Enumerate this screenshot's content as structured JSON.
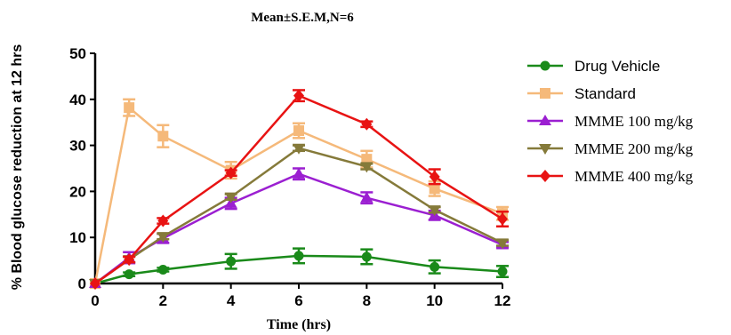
{
  "chart_data": {
    "type": "line",
    "title": "Mean±S.E.M,N=6",
    "xlabel": "Time (hrs)",
    "ylabel": "% Blood glucose reduction at 12 hrs",
    "xlim": [
      0,
      12
    ],
    "ylim": [
      0,
      50
    ],
    "xticks": [
      "0",
      "2",
      "4",
      "6",
      "8",
      "10",
      "12"
    ],
    "yticks": [
      "0",
      "10",
      "20",
      "30",
      "40",
      "50"
    ],
    "grid": false,
    "legend": "right",
    "series": [
      {
        "name": "Drug Vehicle",
        "color": "#1a8a1a",
        "marker": "circle",
        "x": [
          0,
          1,
          2,
          4,
          6,
          8,
          10,
          12
        ],
        "y": [
          0,
          2,
          3,
          4.8,
          6,
          5.8,
          3.6,
          2.6
        ],
        "err": [
          0,
          0.4,
          0.4,
          1.6,
          1.6,
          1.6,
          1.4,
          1.2
        ]
      },
      {
        "name": "Standard",
        "color": "#f5b97a",
        "marker": "square",
        "x": [
          0,
          1,
          2,
          4,
          6,
          8,
          10,
          12
        ],
        "y": [
          0,
          38.2,
          32,
          24.6,
          33.2,
          27,
          20.6,
          15.2
        ],
        "err": [
          0,
          1.8,
          2.4,
          1.8,
          1.6,
          1.8,
          1.6,
          1.4
        ]
      },
      {
        "name": "MMME 100 mg/kg",
        "color": "#9b1fd1",
        "marker": "triangle-up",
        "x": [
          0,
          1,
          2,
          4,
          6,
          8,
          10,
          12
        ],
        "y": [
          0,
          5.6,
          9.8,
          17.4,
          23.8,
          18.6,
          14.8,
          8.4
        ],
        "err": [
          0,
          1.2,
          1,
          1.2,
          1.2,
          1.2,
          1,
          0.6
        ]
      },
      {
        "name": "MMME 200 mg/kg",
        "color": "#857a3a",
        "marker": "triangle-down",
        "x": [
          0,
          1,
          2,
          4,
          6,
          8,
          10,
          12
        ],
        "y": [
          0,
          5.2,
          10.2,
          18.8,
          29.4,
          25.4,
          16,
          8.8
        ],
        "err": [
          0,
          0.6,
          0.6,
          0.6,
          0.6,
          0.6,
          0.6,
          0.6
        ]
      },
      {
        "name": "MMME 400 mg/kg",
        "color": "#e81313",
        "marker": "diamond",
        "x": [
          0,
          1,
          2,
          4,
          6,
          8,
          10,
          12
        ],
        "y": [
          0,
          5.2,
          13.6,
          24,
          40.8,
          34.6,
          23.2,
          14
        ],
        "err": [
          0,
          0.6,
          0.6,
          0.6,
          1.2,
          0.6,
          1.6,
          1.6
        ]
      }
    ]
  }
}
